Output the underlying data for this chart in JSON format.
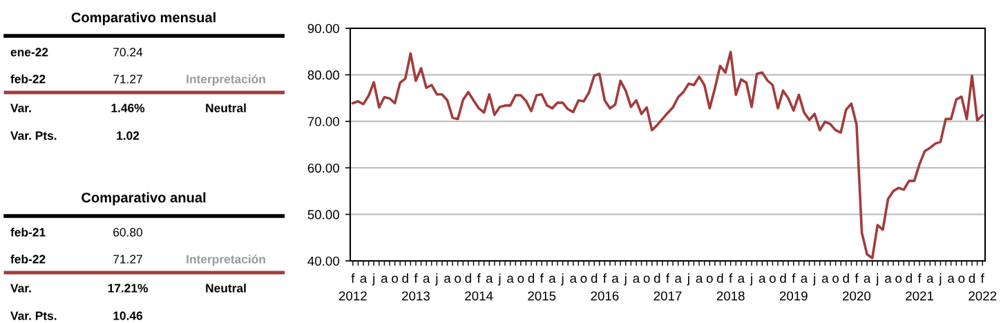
{
  "chart_data": [
    {
      "type": "other",
      "title": "Comparativo mensual",
      "annotations": [
        "ene-22",
        "70.24",
        "feb-22",
        "71.27",
        "Interpretación",
        "Var.",
        "1.46%",
        "Neutral",
        "Var. Pts.",
        "1.02"
      ]
    },
    {
      "type": "other",
      "title": "Comparativo anual",
      "annotations": [
        "feb-21",
        "60.80",
        "feb-22",
        "71.27",
        "Interpretación",
        "Var.",
        "17.21%",
        "Neutral",
        "Var. Pts.",
        "10.46"
      ]
    },
    {
      "type": "line",
      "categories": [
        "f\n2012",
        null,
        "a",
        null,
        "j",
        null,
        "a",
        null,
        "o",
        null,
        "d",
        null,
        "f\n2013",
        null,
        "a",
        null,
        "j",
        null,
        "a",
        null,
        "o",
        null,
        "d",
        null,
        "f\n2014",
        null,
        "a",
        null,
        "j",
        null,
        "a",
        null,
        "o",
        null,
        "d",
        null,
        "f\n2015",
        null,
        "a",
        null,
        "j",
        null,
        "a",
        null,
        "o",
        null,
        "d",
        null,
        "f\n2016",
        null,
        "a",
        null,
        "j",
        null,
        "a",
        null,
        "o",
        null,
        "d",
        null,
        "f\n2017",
        null,
        "a",
        null,
        "j",
        null,
        "a",
        null,
        "o",
        null,
        "d",
        null,
        "f\n2018",
        null,
        "a",
        null,
        "j",
        null,
        "a",
        null,
        "o",
        null,
        "d",
        null,
        "f\n2019",
        null,
        "a",
        null,
        "j",
        null,
        "a",
        null,
        "o",
        null,
        "d",
        null,
        "f\n2020",
        null,
        "a",
        null,
        "j",
        null,
        "a",
        null,
        "o",
        null,
        "d",
        null,
        "f\n2021",
        null,
        "a",
        null,
        "j",
        null,
        "a",
        null,
        "o",
        null,
        "d",
        null,
        "f\n2022"
      ],
      "series": [
        {
          "color": "#a33b3b",
          "values": [
            73.9,
            74.3,
            73.7,
            75.5,
            78.4,
            73.0,
            75.2,
            74.9,
            73.9,
            78.3,
            79.2,
            84.6,
            78.7,
            81.4,
            77.2,
            77.8,
            75.8,
            75.8,
            74.5,
            70.8,
            70.5,
            74.6,
            76.3,
            74.5,
            72.8,
            71.9,
            75.8,
            71.4,
            73.1,
            73.4,
            73.4,
            75.6,
            75.6,
            74.4,
            72.2,
            75.6,
            75.8,
            73.4,
            72.8,
            74.0,
            74.0,
            72.6,
            72.0,
            74.5,
            74.3,
            76.2,
            79.8,
            80.2,
            74.5,
            72.8,
            73.6,
            78.7,
            76.6,
            73.1,
            74.5,
            71.6,
            73.0,
            68.1,
            69.2,
            70.5,
            71.8,
            73.0,
            75.2,
            76.3,
            78.1,
            77.8,
            79.6,
            77.8,
            72.8,
            77.1,
            81.9,
            80.5,
            84.9,
            75.7,
            79.0,
            78.3,
            73.1,
            80.2,
            80.5,
            78.8,
            77.8,
            72.8,
            76.6,
            74.9,
            72.3,
            75.7,
            71.9,
            70.3,
            71.6,
            68.1,
            69.9,
            69.4,
            68.1,
            67.6,
            72.5,
            73.8,
            69.3,
            46.1,
            41.4,
            40.6,
            47.7,
            46.7,
            53.3,
            55.0,
            55.7,
            55.3,
            57.2,
            57.2,
            60.8,
            63.6,
            64.3,
            65.2,
            65.6,
            70.5,
            70.5,
            74.7,
            75.3,
            70.5,
            79.8,
            70.2,
            71.3
          ]
        }
      ],
      "ylim": [
        40,
        90
      ],
      "yticks": [
        {
          "value": 40,
          "label": "40.00"
        },
        {
          "value": 50,
          "label": "50.00"
        },
        {
          "value": 60,
          "label": "60.00"
        },
        {
          "value": 70,
          "label": "70.00"
        },
        {
          "value": 80,
          "label": "80.00"
        },
        {
          "value": 90,
          "label": "90.00"
        }
      ],
      "grid": "y",
      "marker": "none",
      "line_style": "solid"
    }
  ]
}
